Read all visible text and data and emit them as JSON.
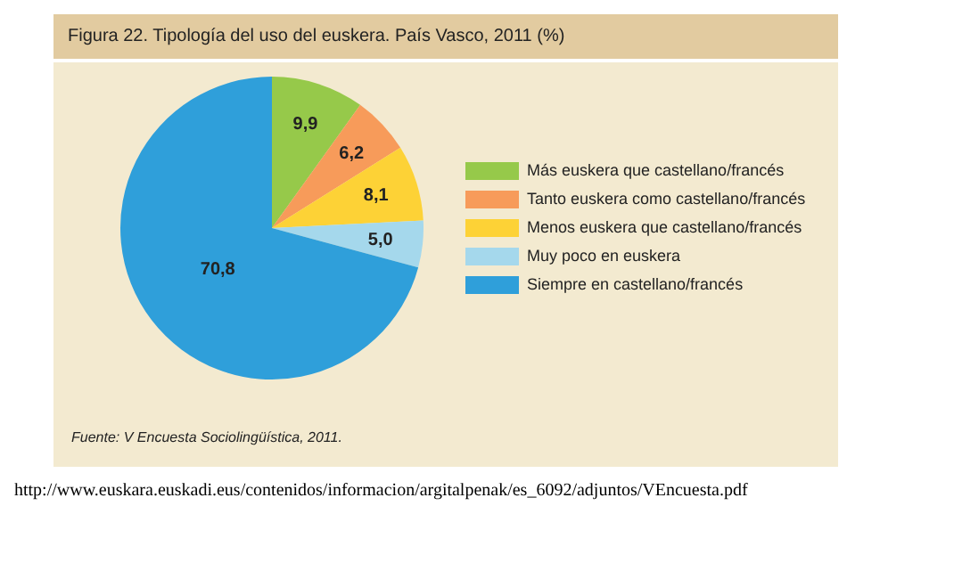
{
  "chart_data": {
    "type": "pie",
    "title": "Figura 22. Tipología del uso del euskera. País Vasco, 2011 (%)",
    "categories": [
      "Más euskera que castellano/francés",
      "Tanto euskera como castellano/francés",
      "Menos euskera que castellano/francés",
      "Muy poco en euskera",
      "Siempre en castellano/francés"
    ],
    "values": [
      9.9,
      6.2,
      8.1,
      5.0,
      70.8
    ],
    "colors": [
      "#96c94a",
      "#f79b5a",
      "#fdd236",
      "#a5d8ec",
      "#2f9fda"
    ],
    "value_labels": [
      "9,9",
      "6,2",
      "8,1",
      "5,0",
      "70,8"
    ],
    "legend": "right",
    "annotations": [
      "Fuente: V Encuesta Sociolingüística, 2011.",
      "http://www.euskara.euskadi.eus/contenidos/informacion/argitalpenak/es_6092/adjuntos/VEncuesta.pdf"
    ]
  }
}
